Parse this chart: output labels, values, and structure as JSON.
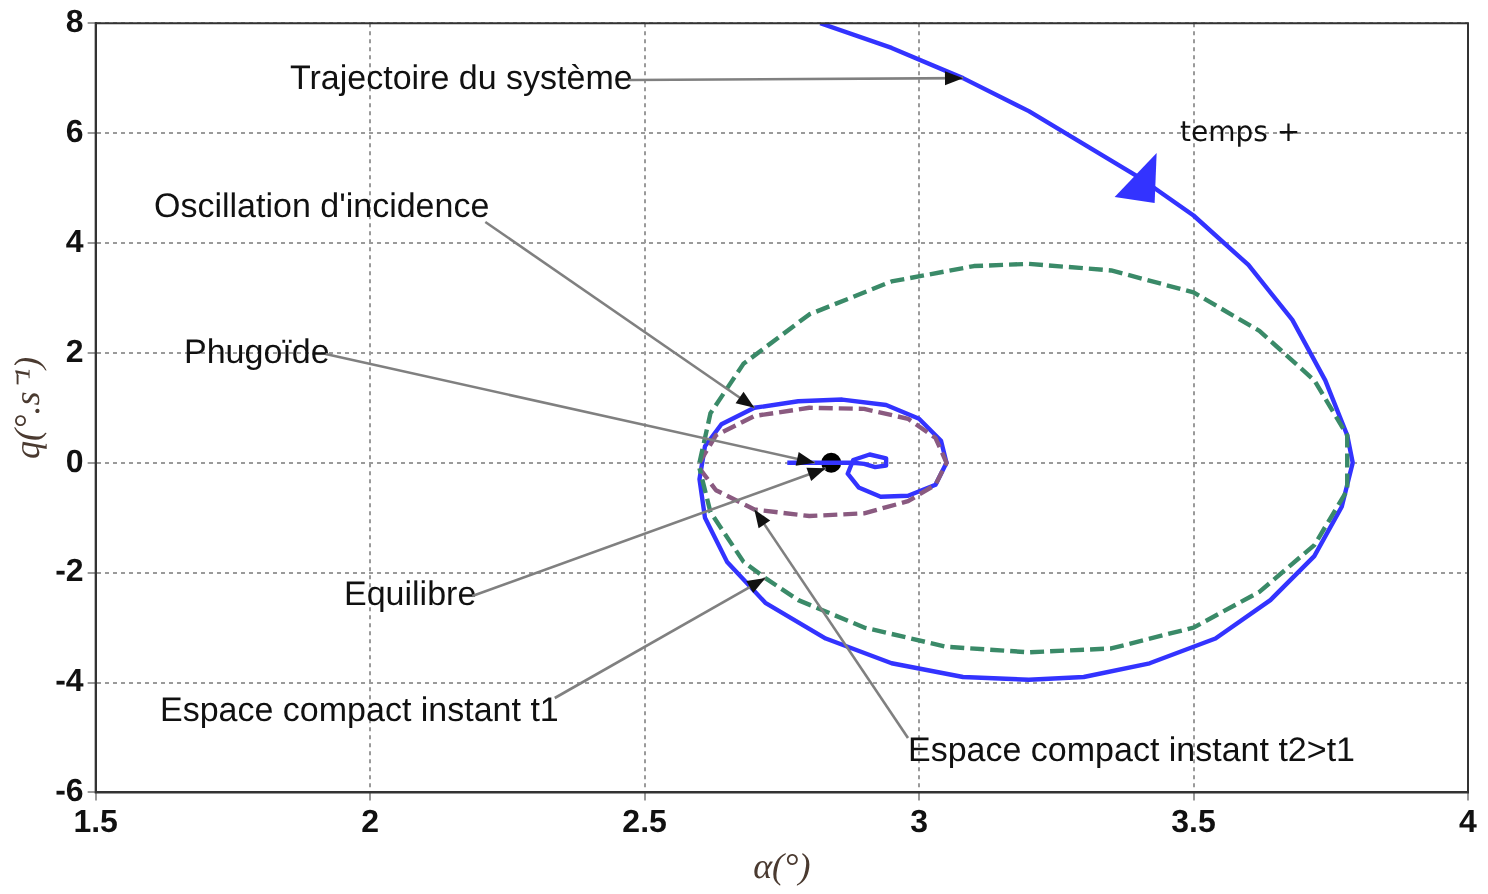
{
  "chart_data": {
    "type": "line",
    "xlabel": "α(°)",
    "ylabel": "q(°.s⁻¹)",
    "xlim": [
      1.5,
      4
    ],
    "xticks": [
      1.5,
      2,
      2.5,
      3,
      3.5,
      4
    ],
    "ylim": [
      -6,
      8
    ],
    "yticks": [
      -6,
      -4,
      -2,
      0,
      2,
      4,
      6,
      8
    ],
    "grid": true,
    "legend": false,
    "series": [
      {
        "color": "#3a8a68",
        "line_style": "dashed",
        "x": [
          2.6,
          2.62,
          2.68,
          2.8,
          2.95,
          3.1,
          3.2,
          3.35,
          3.5,
          3.62,
          3.72,
          3.78,
          3.78,
          3.72,
          3.62,
          3.5,
          3.35,
          3.2,
          3.05,
          2.9,
          2.78,
          2.72,
          2.68,
          2.62,
          2.6
        ],
        "values": [
          0,
          0.9,
          1.8,
          2.7,
          3.3,
          3.58,
          3.62,
          3.5,
          3.1,
          2.4,
          1.5,
          0.5,
          -0.5,
          -1.5,
          -2.35,
          -3.0,
          -3.38,
          -3.45,
          -3.35,
          -3.0,
          -2.5,
          -2.1,
          -1.8,
          -0.9,
          -0.1
        ]
      },
      {
        "color": "#8a5a80",
        "line_style": "dashed",
        "x": [
          2.6,
          2.63,
          2.7,
          2.8,
          2.9,
          2.98,
          3.03,
          3.05,
          3.03,
          2.98,
          2.9,
          2.8,
          2.7,
          2.63,
          2.6
        ],
        "values": [
          0,
          0.5,
          0.85,
          1.0,
          0.98,
          0.8,
          0.45,
          0,
          -0.4,
          -0.7,
          -0.92,
          -0.97,
          -0.85,
          -0.5,
          -0.1
        ]
      },
      {
        "color": "#3333ff",
        "line_style": "solid",
        "x": [
          2.82,
          2.95,
          3.08,
          3.2,
          3.3,
          3.4,
          3.5,
          3.6,
          3.68,
          3.74,
          3.78,
          3.79,
          3.77,
          3.72,
          3.64,
          3.54,
          3.42,
          3.3,
          3.2,
          3.08,
          2.95,
          2.83,
          2.72,
          2.65,
          2.61,
          2.6,
          2.61,
          2.64,
          2.7,
          2.78,
          2.86,
          2.94,
          3.0,
          3.04,
          3.05,
          3.03,
          2.98,
          2.93,
          2.89,
          2.87,
          2.88,
          2.91,
          2.94,
          2.94,
          2.92,
          2.9,
          2.88,
          2.76
        ],
        "values": [
          8,
          7.55,
          7.0,
          6.4,
          5.8,
          5.2,
          4.5,
          3.6,
          2.6,
          1.5,
          0.5,
          0,
          -0.8,
          -1.7,
          -2.5,
          -3.2,
          -3.65,
          -3.9,
          -3.95,
          -3.9,
          -3.65,
          -3.2,
          -2.55,
          -1.8,
          -1.0,
          -0.3,
          0.3,
          0.7,
          1.0,
          1.12,
          1.15,
          1.05,
          0.8,
          0.4,
          0,
          -0.4,
          -0.6,
          -0.62,
          -0.45,
          -0.2,
          0.05,
          0.15,
          0.08,
          -0.05,
          -0.08,
          -0.02,
          0,
          0
        ]
      },
      {
        "type": "scatter",
        "color": "#000000",
        "marker": "circle",
        "x": [
          2.84
        ],
        "values": [
          0
        ]
      }
    ],
    "annotations": [
      {
        "text": "Trajectoire du système",
        "x": 3.08,
        "y": 7.0
      },
      {
        "text": "Oscillation d'incidence",
        "x": 2.7,
        "y": 1.0
      },
      {
        "text": "Phugoïde",
        "x": 2.81,
        "y": 0
      },
      {
        "text": "Equilibre",
        "x": 2.83,
        "y": -0.1
      },
      {
        "text": "Espace compact instant t1",
        "x": 2.72,
        "y": -2.1
      },
      {
        "text": "Espace compact instant t2>t1",
        "x": 2.7,
        "y": -0.85
      },
      {
        "text": "temps +",
        "x": 3.4,
        "y": 5.2
      }
    ]
  }
}
